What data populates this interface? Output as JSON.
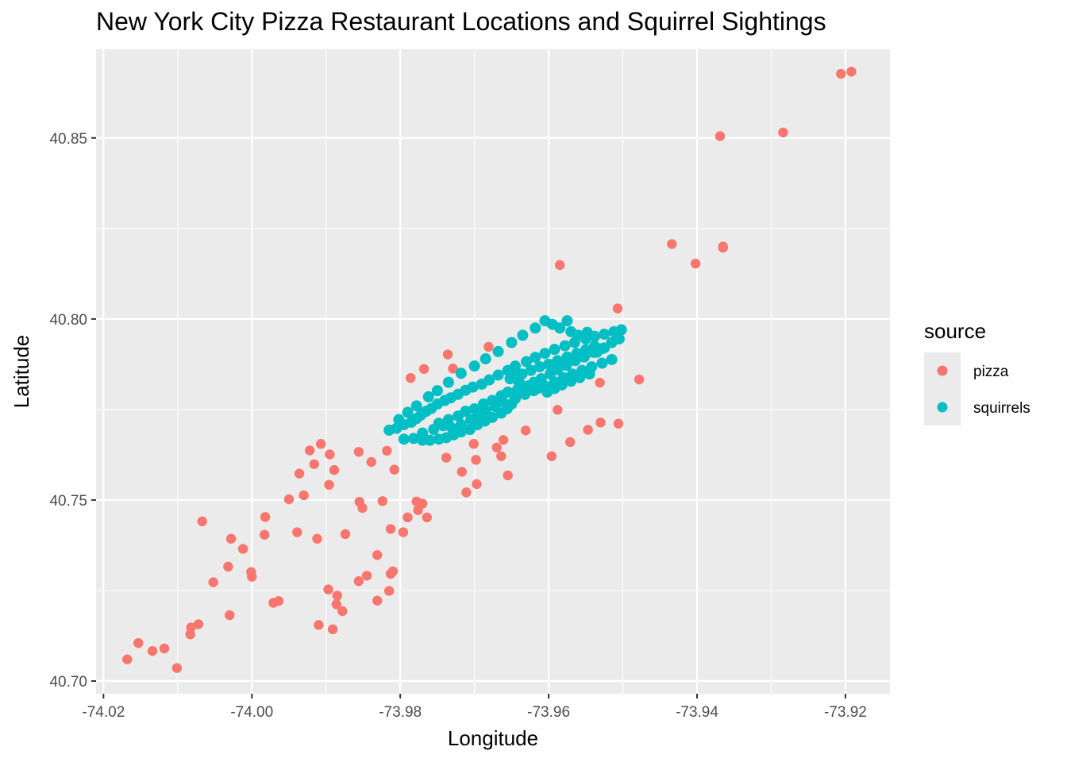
{
  "chart_data": {
    "type": "scatter",
    "title": "New York City Pizza Restaurant Locations and Squirrel Sightings",
    "xlabel": "Longitude",
    "ylabel": "Latitude",
    "xlim": [
      -74.021,
      -73.914
    ],
    "ylim": [
      40.6965,
      40.8745
    ],
    "x_ticks": [
      -74.02,
      -74.0,
      -73.98,
      -73.96,
      -73.94,
      -73.92
    ],
    "x_tick_labels": [
      "-74.02",
      "-74.00",
      "-73.98",
      "-73.96",
      "-73.94",
      "-73.92"
    ],
    "y_ticks": [
      40.7,
      40.75,
      40.8,
      40.85
    ],
    "y_tick_labels": [
      "40.70",
      "40.75",
      "40.80",
      "40.85"
    ],
    "grid": true,
    "legend": {
      "title": "source",
      "placement": "right"
    },
    "series": [
      {
        "name": "pizza",
        "color": "#F8766D",
        "points": [
          [
            -74.0168,
            40.706
          ],
          [
            -74.0153,
            40.7105
          ],
          [
            -74.0134,
            40.7083
          ],
          [
            -74.0118,
            40.709
          ],
          [
            -74.0101,
            40.7036
          ],
          [
            -74.0083,
            40.7129
          ],
          [
            -74.0082,
            40.7148
          ],
          [
            -74.0072,
            40.7157
          ],
          [
            -74.0067,
            40.7441
          ],
          [
            -74.0052,
            40.7273
          ],
          [
            -74.003,
            40.7182
          ],
          [
            -74.0028,
            40.7393
          ],
          [
            -74.0032,
            40.7316
          ],
          [
            -74.0012,
            40.7365
          ],
          [
            -74.0,
            40.7288
          ],
          [
            -74.0001,
            40.7301
          ],
          [
            -73.9983,
            40.7404
          ],
          [
            -73.9982,
            40.7453
          ],
          [
            -73.9971,
            40.7216
          ],
          [
            -73.9964,
            40.7221
          ],
          [
            -73.995,
            40.7502
          ],
          [
            -73.9939,
            40.7411
          ],
          [
            -73.9936,
            40.7573
          ],
          [
            -73.993,
            40.7513
          ],
          [
            -73.9922,
            40.7637
          ],
          [
            -73.9916,
            40.7599
          ],
          [
            -73.9907,
            40.7655
          ],
          [
            -73.991,
            40.7155
          ],
          [
            -73.9912,
            40.7393
          ],
          [
            -73.9897,
            40.7253
          ],
          [
            -73.9896,
            40.7542
          ],
          [
            -73.9895,
            40.7626
          ],
          [
            -73.9891,
            40.7143
          ],
          [
            -73.9889,
            40.7583
          ],
          [
            -73.9886,
            40.7212
          ],
          [
            -73.9885,
            40.7236
          ],
          [
            -73.9878,
            40.7193
          ],
          [
            -73.9874,
            40.7406
          ],
          [
            -73.9855,
            40.7495
          ],
          [
            -73.9856,
            40.7276
          ],
          [
            -73.9856,
            40.7633
          ],
          [
            -73.9851,
            40.7478
          ],
          [
            -73.9845,
            40.7291
          ],
          [
            -73.9839,
            40.7605
          ],
          [
            -73.9831,
            40.7348
          ],
          [
            -73.9831,
            40.7222
          ],
          [
            -73.9824,
            40.7497
          ],
          [
            -73.9818,
            40.7636
          ],
          [
            -73.9815,
            40.7249
          ],
          [
            -73.9813,
            40.7296
          ],
          [
            -73.9813,
            40.742
          ],
          [
            -73.981,
            40.7303
          ],
          [
            -73.9808,
            40.7584
          ],
          [
            -73.9796,
            40.7411
          ],
          [
            -73.979,
            40.7452
          ],
          [
            -73.9786,
            40.7837
          ],
          [
            -73.9778,
            40.7496
          ],
          [
            -73.9776,
            40.7472
          ],
          [
            -73.977,
            40.749
          ],
          [
            -73.9768,
            40.7862
          ],
          [
            -73.9764,
            40.7452
          ],
          [
            -73.9738,
            40.7617
          ],
          [
            -73.9736,
            40.7902
          ],
          [
            -73.9729,
            40.7863
          ],
          [
            -73.9717,
            40.7578
          ],
          [
            -73.9711,
            40.7521
          ],
          [
            -73.9701,
            40.7655
          ],
          [
            -73.9698,
            40.7611
          ],
          [
            -73.9697,
            40.7544
          ],
          [
            -73.9681,
            40.7923
          ],
          [
            -73.967,
            40.7645
          ],
          [
            -73.9664,
            40.7621
          ],
          [
            -73.9661,
            40.7666
          ],
          [
            -73.9655,
            40.7568
          ],
          [
            -73.9631,
            40.7692
          ],
          [
            -73.9596,
            40.7621
          ],
          [
            -73.9588,
            40.7749
          ],
          [
            -73.9585,
            40.8149
          ],
          [
            -73.9571,
            40.766
          ],
          [
            -73.9547,
            40.7694
          ],
          [
            -73.9531,
            40.7824
          ],
          [
            -73.953,
            40.7714
          ],
          [
            -73.9507,
            40.8029
          ],
          [
            -73.9506,
            40.7711
          ],
          [
            -73.9478,
            40.7833
          ],
          [
            -73.9434,
            40.8207
          ],
          [
            -73.9402,
            40.8153
          ],
          [
            -73.9369,
            40.8505
          ],
          [
            -73.9365,
            40.82
          ],
          [
            -73.9365,
            40.8197
          ],
          [
            -73.9284,
            40.8515
          ],
          [
            -73.9206,
            40.8677
          ],
          [
            -73.9192,
            40.8683
          ]
        ]
      },
      {
        "name": "squirrels",
        "color": "#00BFC4",
        "points": [
          [
            -73.9815,
            40.7693
          ],
          [
            -73.9805,
            40.7698
          ],
          [
            -73.9795,
            40.7708
          ],
          [
            -73.9785,
            40.7715
          ],
          [
            -73.9778,
            40.7725
          ],
          [
            -73.9772,
            40.7735
          ],
          [
            -73.9765,
            40.7745
          ],
          [
            -73.9758,
            40.7753
          ],
          [
            -73.975,
            40.7765
          ],
          [
            -73.974,
            40.7775
          ],
          [
            -73.9732,
            40.7782
          ],
          [
            -73.9722,
            40.7792
          ],
          [
            -73.9712,
            40.7803
          ],
          [
            -73.9702,
            40.7812
          ],
          [
            -73.969,
            40.782
          ],
          [
            -73.968,
            40.7832
          ],
          [
            -73.9668,
            40.7845
          ],
          [
            -73.9655,
            40.7858
          ],
          [
            -73.9645,
            40.787
          ],
          [
            -73.963,
            40.7882
          ],
          [
            -73.9618,
            40.7894
          ],
          [
            -73.9605,
            40.7905
          ],
          [
            -73.9592,
            40.7916
          ],
          [
            -73.9578,
            40.7926
          ],
          [
            -73.9565,
            40.7935
          ],
          [
            -73.955,
            40.7945
          ],
          [
            -73.9538,
            40.7952
          ],
          [
            -73.9525,
            40.7958
          ],
          [
            -73.9512,
            40.7965
          ],
          [
            -73.9502,
            40.797
          ],
          [
            -73.9795,
            40.7668
          ],
          [
            -73.9782,
            40.767
          ],
          [
            -73.977,
            40.7665
          ],
          [
            -73.976,
            40.7665
          ],
          [
            -73.9748,
            40.7668
          ],
          [
            -73.9738,
            40.7672
          ],
          [
            -73.9728,
            40.768
          ],
          [
            -73.9718,
            40.7688
          ],
          [
            -73.9706,
            40.7695
          ],
          [
            -73.9696,
            40.7708
          ],
          [
            -73.9686,
            40.7718
          ],
          [
            -73.9676,
            40.7728
          ],
          [
            -73.9664,
            40.774
          ],
          [
            -73.9656,
            40.7752
          ],
          [
            -73.965,
            40.7765
          ],
          [
            -73.9645,
            40.778
          ],
          [
            -73.9632,
            40.7792
          ],
          [
            -73.962,
            40.7802
          ],
          [
            -73.9605,
            40.7815
          ],
          [
            -73.9592,
            40.7826
          ],
          [
            -73.958,
            40.7838
          ],
          [
            -73.9568,
            40.7848
          ],
          [
            -73.9555,
            40.7858
          ],
          [
            -73.9542,
            40.7868
          ],
          [
            -73.9528,
            40.7878
          ],
          [
            -73.9515,
            40.7888
          ],
          [
            -73.9505,
            40.7945
          ],
          [
            -73.9515,
            40.7935
          ],
          [
            -73.9525,
            40.792
          ],
          [
            -73.9535,
            40.7908
          ],
          [
            -73.9748,
            40.7712
          ],
          [
            -73.9735,
            40.7722
          ],
          [
            -73.9722,
            40.7732
          ],
          [
            -73.9712,
            40.7745
          ],
          [
            -73.97,
            40.7752
          ],
          [
            -73.9688,
            40.7765
          ],
          [
            -73.9676,
            40.7775
          ],
          [
            -73.9664,
            40.7788
          ],
          [
            -73.9655,
            40.7798
          ],
          [
            -73.9642,
            40.7805
          ],
          [
            -73.9635,
            40.7815
          ],
          [
            -73.962,
            40.7825
          ],
          [
            -73.961,
            40.7835
          ],
          [
            -73.9598,
            40.7848
          ],
          [
            -73.9588,
            40.786
          ],
          [
            -73.9576,
            40.7872
          ],
          [
            -73.9564,
            40.7885
          ],
          [
            -73.9552,
            40.7895
          ],
          [
            -73.954,
            40.7908
          ],
          [
            -73.9528,
            40.7918
          ],
          [
            -73.977,
            40.7685
          ],
          [
            -73.9755,
            40.7695
          ],
          [
            -73.9742,
            40.7705
          ],
          [
            -73.973,
            40.7698
          ],
          [
            -73.9718,
            40.7708
          ],
          [
            -73.9705,
            40.7722
          ],
          [
            -73.9695,
            40.7735
          ],
          [
            -73.9685,
            40.7748
          ],
          [
            -73.9672,
            40.7758
          ],
          [
            -73.9662,
            40.7772
          ],
          [
            -73.9648,
            40.7842
          ],
          [
            -73.9636,
            40.7848
          ],
          [
            -73.9624,
            40.7858
          ],
          [
            -73.9612,
            40.7868
          ],
          [
            -73.96,
            40.7875
          ],
          [
            -73.9588,
            40.7885
          ],
          [
            -73.9575,
            40.7895
          ],
          [
            -73.9562,
            40.7905
          ],
          [
            -73.955,
            40.7915
          ],
          [
            -73.9538,
            40.7925
          ],
          [
            -73.9652,
            40.7835
          ],
          [
            -73.964,
            40.7825
          ],
          [
            -73.9628,
            40.7815
          ],
          [
            -73.9615,
            40.7808
          ],
          [
            -73.9602,
            40.7798
          ],
          [
            -73.9592,
            40.7808
          ],
          [
            -73.9582,
            40.7818
          ],
          [
            -73.957,
            40.7828
          ],
          [
            -73.9558,
            40.7838
          ],
          [
            -73.9545,
            40.7848
          ],
          [
            -73.9605,
            40.7995
          ],
          [
            -73.9595,
            40.7985
          ],
          [
            -73.9585,
            40.7975
          ],
          [
            -73.957,
            40.7965
          ],
          [
            -73.956,
            40.7955
          ],
          [
            -73.9548,
            40.7963
          ],
          [
            -73.9575,
            40.7995
          ],
          [
            -73.9618,
            40.7975
          ],
          [
            -73.9635,
            40.7955
          ],
          [
            -73.965,
            40.7935
          ],
          [
            -73.9668,
            40.791
          ],
          [
            -73.9685,
            40.789
          ],
          [
            -73.97,
            40.787
          ],
          [
            -73.9718,
            40.785
          ],
          [
            -73.9735,
            40.7825
          ],
          [
            -73.975,
            40.7802
          ],
          [
            -73.9762,
            40.7785
          ],
          [
            -73.9778,
            40.776
          ],
          [
            -73.979,
            40.7742
          ],
          [
            -73.9802,
            40.7722
          ]
        ]
      }
    ]
  }
}
